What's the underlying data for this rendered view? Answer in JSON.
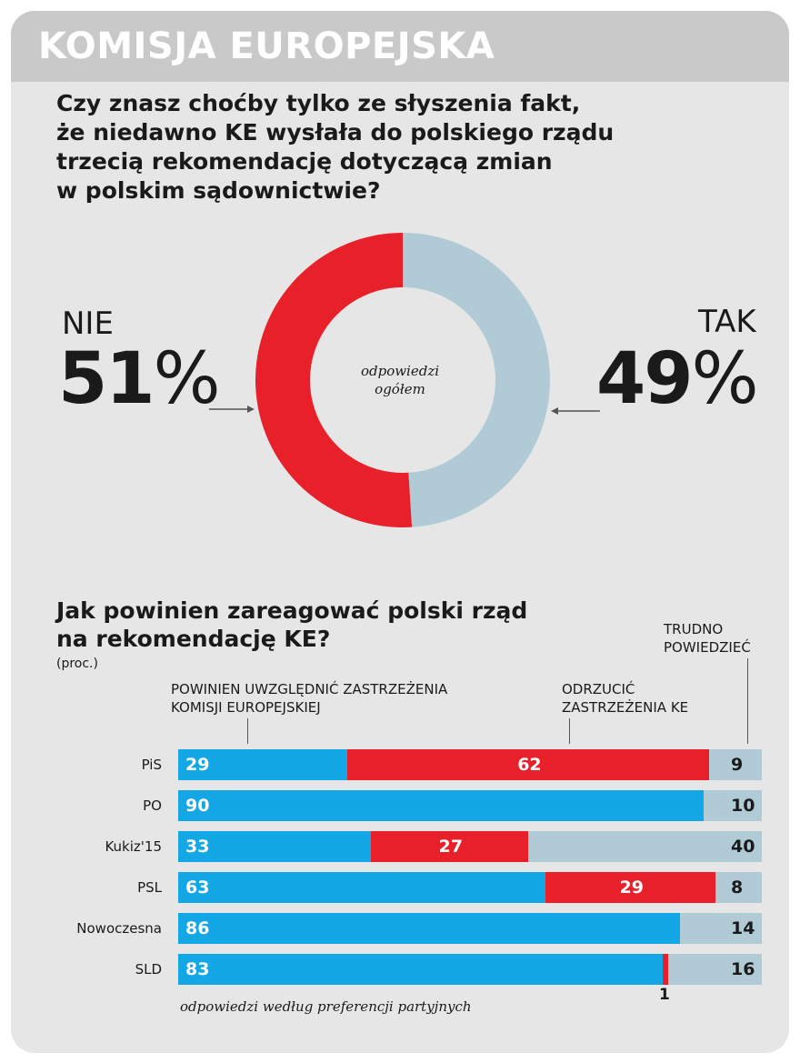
{
  "header": {
    "title": "KOMISJA EUROPEJSKA"
  },
  "question1": {
    "lines": [
      "Czy znasz choćby tylko ze słyszenia fakt,",
      "że niedawno KE wysłała do polskiego rządu",
      "trzecią rekomendację dotyczącą zmian",
      "w polskim sądownictwie?"
    ]
  },
  "donut": {
    "center_lines": [
      "odpowiedzi",
      "ogółem"
    ],
    "left": {
      "label": "NIE",
      "value": 51,
      "pct_text": "51",
      "sign": "%"
    },
    "right": {
      "label": "TAK",
      "value": 49,
      "pct_text": "49",
      "sign": "%"
    }
  },
  "question2": {
    "lines": [
      "Jak powinien zareagować polski rząd",
      "na rekomendację KE?"
    ],
    "unit": "(proc.)"
  },
  "legend": {
    "accept": [
      "POWINIEN UWZGLĘDNIĆ ZASTRZEŻENIA",
      "KOMISJI EUROPEJSKIEJ"
    ],
    "reject": [
      "ODRZUCIĆ",
      "ZASTRZEŻENIA KE"
    ],
    "unsure": [
      "TRUDNO",
      "POWIEDZIEĆ"
    ]
  },
  "footnote": "odpowiedzi według preferencji partyjnych",
  "colors": {
    "nie": "#e8202a",
    "tak": "#b0cbd6",
    "accept": "#13a7e6",
    "reject": "#e8202a",
    "unsure": "#b0cbd6"
  },
  "chart_data": [
    {
      "type": "pie",
      "title": "",
      "categories": [
        "NIE",
        "TAK"
      ],
      "values": [
        51,
        49
      ]
    },
    {
      "type": "bar",
      "stacked": true,
      "orientation": "horizontal",
      "categories": [
        "PiS",
        "PO",
        "Kukiz'15",
        "PSL",
        "Nowoczesna",
        "SLD"
      ],
      "series": [
        {
          "name": "POWINIEN UWZGLĘDNIĆ ZASTRZEŻENIA KOMISJI EUROPEJSKIEJ",
          "values": [
            29,
            90,
            33,
            63,
            86,
            83
          ]
        },
        {
          "name": "ODRZUCIĆ ZASTRZEŻENIA KE",
          "values": [
            62,
            0,
            27,
            29,
            0,
            1
          ]
        },
        {
          "name": "TRUDNO POWIEDZIEĆ",
          "values": [
            9,
            10,
            40,
            8,
            14,
            16
          ]
        }
      ],
      "xlim": [
        0,
        100
      ]
    }
  ]
}
